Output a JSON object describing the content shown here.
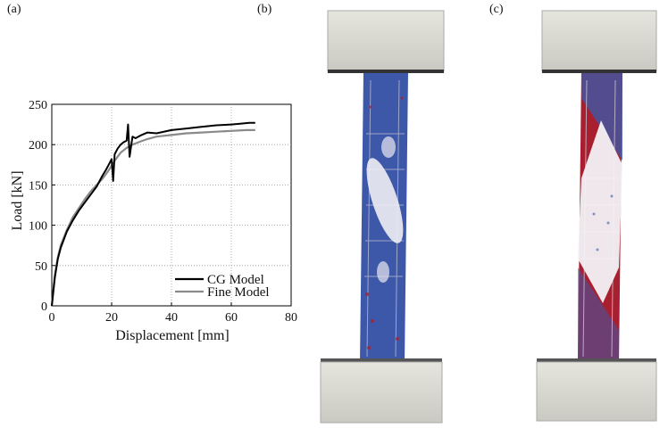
{
  "panels": {
    "a": "(a)",
    "b": "(b)",
    "c": "(c)"
  },
  "colors": {
    "cg_line": "#000000",
    "fine_line": "#8a8a8a",
    "block_fill": "#d8d8d0",
    "steel_blue": "#3d58a8",
    "damage_red": "#a82030"
  },
  "chart_data": {
    "type": "line",
    "xlabel": "Displacement [mm]",
    "ylabel": "Load [kN]",
    "xlim": [
      0,
      80
    ],
    "ylim": [
      0,
      250
    ],
    "xticks": [
      "0",
      "20",
      "40",
      "60",
      "80"
    ],
    "yticks": [
      "0",
      "50",
      "100",
      "150",
      "200",
      "250"
    ],
    "grid": true,
    "legend_position": "bottom-right",
    "series": [
      {
        "name": "CG Model",
        "x": [
          0,
          1,
          2,
          3,
          5,
          7,
          9,
          11,
          13,
          15,
          16,
          17,
          18,
          19,
          20,
          20.5,
          21,
          22,
          23,
          24,
          25,
          25.5,
          26,
          27,
          28,
          30,
          32,
          35,
          40,
          45,
          50,
          55,
          60,
          63,
          66,
          68
        ],
        "y": [
          0,
          35,
          58,
          72,
          92,
          106,
          118,
          128,
          138,
          148,
          155,
          162,
          168,
          175,
          182,
          155,
          188,
          195,
          200,
          203,
          205,
          225,
          185,
          210,
          208,
          212,
          215,
          214,
          218,
          220,
          222,
          224,
          225,
          226,
          227,
          227
        ]
      },
      {
        "name": "Fine Model",
        "x": [
          0,
          1,
          2,
          3,
          5,
          7,
          9,
          11,
          13,
          15,
          17,
          19,
          21,
          23,
          25,
          27,
          29,
          32,
          35,
          40,
          45,
          50,
          55,
          60,
          65,
          68
        ],
        "y": [
          0,
          38,
          60,
          75,
          94,
          110,
          121,
          132,
          142,
          150,
          158,
          168,
          180,
          190,
          196,
          200,
          203,
          207,
          210,
          212,
          214,
          215,
          216,
          217,
          218,
          218
        ]
      }
    ]
  },
  "figures": {
    "b": {
      "state": "intact-with-diagonal-shear-band"
    },
    "c": {
      "state": "cracked-with-red-damage"
    }
  }
}
